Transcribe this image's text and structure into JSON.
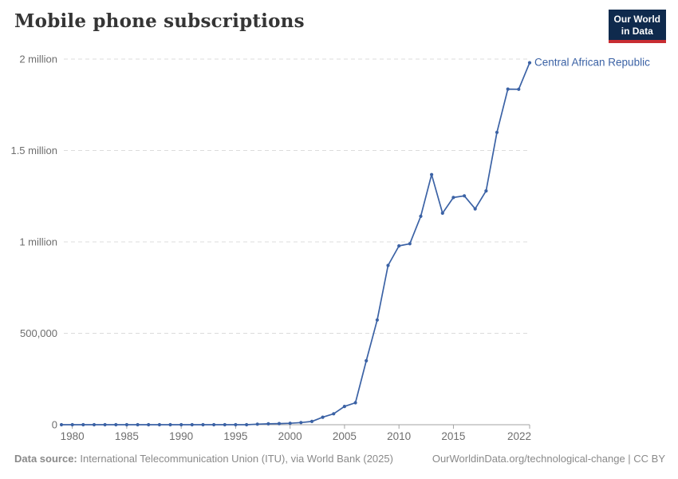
{
  "header": {
    "title": "Mobile phone subscriptions",
    "logo": {
      "line1": "Our World",
      "line2": "in Data",
      "bg_color": "#0f2a4d",
      "bar_color": "#c82d32"
    }
  },
  "chart_data": {
    "type": "line",
    "title": "Mobile phone subscriptions",
    "xlabel": "",
    "ylabel": "",
    "xlim": [
      1979,
      2022
    ],
    "ylim": [
      0,
      2000000
    ],
    "grid": "horizontal-dashed",
    "legend_position": "end-of-line-label",
    "x_ticks": [
      1980,
      1985,
      1990,
      1995,
      2000,
      2005,
      2010,
      2015,
      2022
    ],
    "y_ticks": [
      {
        "value": 0,
        "label": "0"
      },
      {
        "value": 500000,
        "label": "500,000"
      },
      {
        "value": 1000000,
        "label": "1 million"
      },
      {
        "value": 1500000,
        "label": "1.5 million"
      },
      {
        "value": 2000000,
        "label": "2 million"
      }
    ],
    "series": [
      {
        "name": "Central African Republic",
        "color": "#3b62a5",
        "x": [
          1979,
          1980,
          1981,
          1982,
          1983,
          1984,
          1985,
          1986,
          1987,
          1988,
          1989,
          1990,
          1991,
          1992,
          1993,
          1994,
          1995,
          1996,
          1997,
          1998,
          1999,
          2000,
          2001,
          2002,
          2003,
          2004,
          2005,
          2006,
          2007,
          2008,
          2009,
          2010,
          2011,
          2012,
          2013,
          2014,
          2015,
          2016,
          2017,
          2018,
          2019,
          2020,
          2021,
          2022
        ],
        "values": [
          0,
          0,
          0,
          0,
          0,
          0,
          0,
          0,
          0,
          0,
          0,
          0,
          0,
          0,
          0,
          0,
          0,
          0,
          3000,
          5000,
          6000,
          8000,
          12000,
          18000,
          41000,
          60000,
          100000,
          120000,
          350000,
          573000,
          871000,
          978000,
          990000,
          1140000,
          1368000,
          1157000,
          1243000,
          1252000,
          1181000,
          1279000,
          1599000,
          1836000,
          1835000,
          1980000
        ]
      }
    ]
  },
  "footer": {
    "data_source_label": "Data source:",
    "data_source_text": " International Telecommunication Union (ITU), via World Bank (2025)",
    "link": "OurWorldinData.org/technological-change | CC BY"
  },
  "colors": {
    "accent_line": "#3b62a5",
    "gridline": "#dcdcdc",
    "axis": "#a3a3a3",
    "tick_text": "#6e6e6e",
    "footer_text": "#8a8a8a",
    "title_text": "#353535"
  }
}
